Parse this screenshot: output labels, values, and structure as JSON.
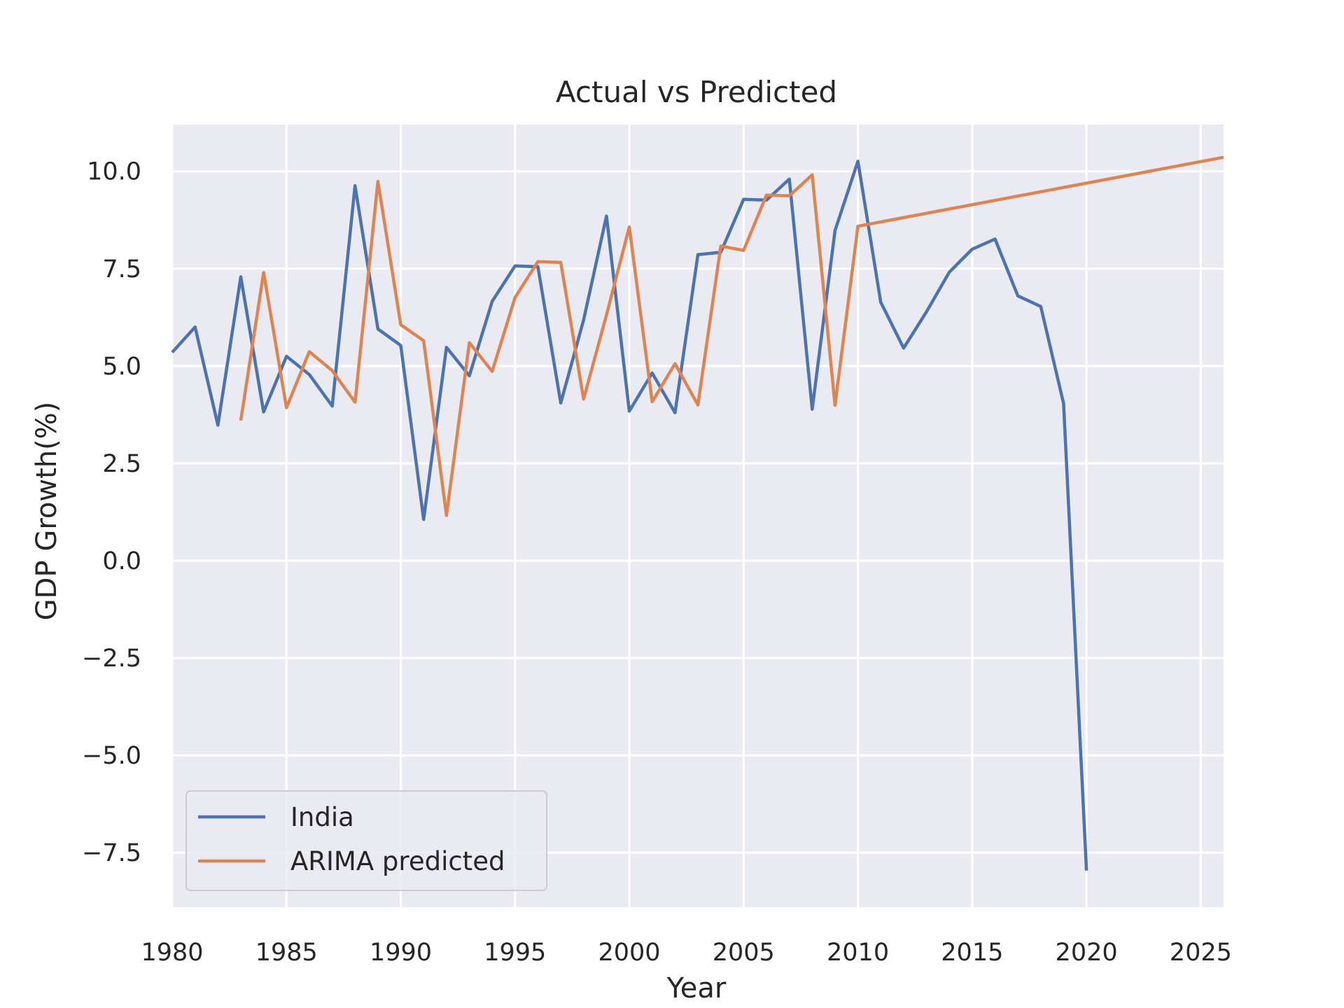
{
  "chart_data": {
    "type": "line",
    "title": "Actual vs Predicted",
    "xlabel": "Year",
    "ylabel": "GDP Growth(%)",
    "xlim": [
      1980,
      2026
    ],
    "ylim": [
      -8.9,
      11.2
    ],
    "xticks": [
      1980,
      1985,
      1990,
      1995,
      2000,
      2005,
      2010,
      2015,
      2020,
      2025
    ],
    "xtick_labels": [
      "1980",
      "1985",
      "1990",
      "1995",
      "2000",
      "2005",
      "2010",
      "2015",
      "2020",
      "2025"
    ],
    "yticks": [
      -7.5,
      -5.0,
      -2.5,
      0.0,
      2.5,
      5.0,
      7.5,
      10.0
    ],
    "ytick_labels": [
      "−7.5",
      "−5.0",
      "−2.5",
      "0.0",
      "2.5",
      "5.0",
      "7.5",
      "10.0"
    ],
    "grid": true,
    "background": "#eaeaf2",
    "legend_position": "lower-left",
    "series": [
      {
        "name": "India",
        "color": "#4c72b0",
        "x": [
          1980,
          1981,
          1982,
          1983,
          1984,
          1985,
          1986,
          1987,
          1988,
          1989,
          1990,
          1991,
          1992,
          1993,
          1994,
          1995,
          1996,
          1997,
          1998,
          1999,
          2000,
          2001,
          2002,
          2003,
          2004,
          2005,
          2006,
          2007,
          2008,
          2009,
          2010,
          2011,
          2012,
          2013,
          2014,
          2015,
          2016,
          2017,
          2018,
          2019,
          2020
        ],
        "y": [
          5.35,
          6.0,
          3.48,
          7.29,
          3.82,
          5.25,
          4.78,
          3.97,
          9.63,
          5.95,
          5.53,
          1.06,
          5.48,
          4.75,
          6.66,
          7.57,
          7.55,
          4.05,
          6.18,
          8.85,
          3.84,
          4.82,
          3.8,
          7.86,
          7.92,
          9.28,
          9.26,
          9.8,
          3.89,
          8.48,
          10.26,
          6.64,
          5.46,
          6.39,
          7.41,
          8.0,
          8.26,
          6.8,
          6.53,
          4.04,
          -7.96
        ]
      },
      {
        "name": "ARIMA predicted",
        "color": "#dd8452",
        "x": [
          1983,
          1984,
          1985,
          1986,
          1987,
          1988,
          1989,
          1990,
          1991,
          1992,
          1993,
          1994,
          1995,
          1996,
          1997,
          1998,
          1999,
          2000,
          2001,
          2002,
          2003,
          2004,
          2005,
          2006,
          2007,
          2008,
          2009,
          2010,
          2026
        ],
        "y": [
          3.6,
          7.4,
          3.93,
          5.37,
          4.88,
          4.07,
          9.74,
          6.06,
          5.65,
          1.16,
          5.6,
          4.86,
          6.76,
          7.68,
          7.66,
          4.15,
          6.31,
          8.57,
          4.08,
          5.06,
          4.0,
          8.08,
          7.97,
          9.39,
          9.37,
          9.91,
          3.99,
          8.59,
          10.36
        ]
      }
    ]
  }
}
